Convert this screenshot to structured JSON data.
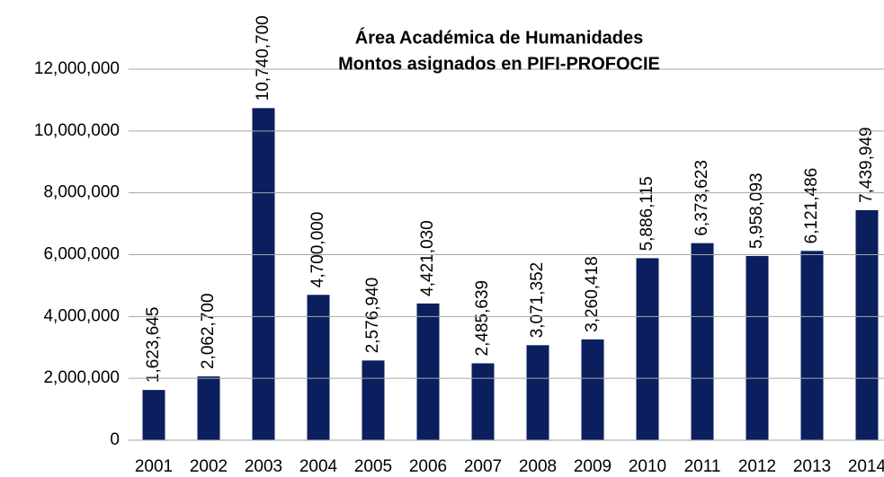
{
  "chart_data": {
    "type": "bar",
    "title": "Área Académica de Humanidades",
    "subtitle": "Montos asignados en PIFI-PROFOCIE",
    "categories": [
      "2001",
      "2002",
      "2003",
      "2004",
      "2005",
      "2006",
      "2007",
      "2008",
      "2009",
      "2010",
      "2011",
      "2012",
      "2013",
      "2014"
    ],
    "values": [
      1623645,
      2062700,
      10740700,
      4700000,
      2576940,
      4421030,
      2485639,
      3071352,
      3260418,
      5886115,
      6373623,
      5958093,
      6121486,
      7439949
    ],
    "value_labels": [
      "1,623,645",
      "2,062,700",
      "10,740,700",
      "4,700,000",
      "2,576,940",
      "4,421,030",
      "2,485,639",
      "3,071,352",
      "3,260,418",
      "5,886,115",
      "6,373,623",
      "5,958,093",
      "6,121,486",
      "7,439,949"
    ],
    "color": "#0b1f5e",
    "ylim": [
      0,
      12000000
    ],
    "yticks": [
      0,
      {
        "value": 2000000,
        "label": "2,000,000"
      },
      {
        "value": 4000000,
        "label": "4,000,000"
      },
      {
        "value": 6000000,
        "label": "6,000,000"
      },
      {
        "value": 8000000,
        "label": "8,000,000"
      },
      {
        "value": 10000000,
        "label": "10,000,000"
      },
      {
        "value": 12000000,
        "label": "12,000,000"
      }
    ],
    "grid": true
  }
}
